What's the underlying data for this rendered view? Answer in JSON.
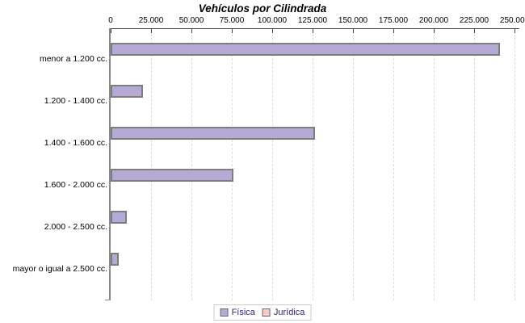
{
  "title": "Vehículos por Cilindrada",
  "chart_data": {
    "type": "bar",
    "orientation": "horizontal",
    "title": "Vehículos por Cilindrada",
    "categories": [
      "menor a 1.200 cc.",
      "1.200 - 1.400 cc.",
      "1.400 - 1.600 cc.",
      "1.600 - 2.000 cc.",
      "2.000 - 2.500 cc.",
      "mayor o igual a 2.500 cc."
    ],
    "series": [
      {
        "name": "Física",
        "color": "#b5a9d5",
        "values": [
          241000,
          20000,
          126500,
          75800,
          10000,
          5000
        ]
      },
      {
        "name": "Jurídica",
        "color": "#f9c8c8",
        "values": [
          0,
          0,
          0,
          0,
          0,
          0
        ]
      }
    ],
    "xlim": [
      0,
      250000
    ],
    "x_ticks": [
      "0",
      "25.000",
      "50.000",
      "75.000",
      "100.000",
      "125.000",
      "150.000",
      "175.000",
      "200.000",
      "225.000",
      "250.000"
    ],
    "grid": "vertical-dashed",
    "legend_position": "bottom",
    "axis_position": "top"
  },
  "colors": {
    "bar_fill": "#b5a9d5",
    "bar_border": "#7d7d7d",
    "juridica_fill": "#f9c8c8",
    "x_axis_line": "#444444",
    "y_axis_line": "#8a8a8a",
    "gridline": "#dcdcdc",
    "legend_text": "#3b2273",
    "legend_border": "#cccccc",
    "text": "#000000"
  }
}
